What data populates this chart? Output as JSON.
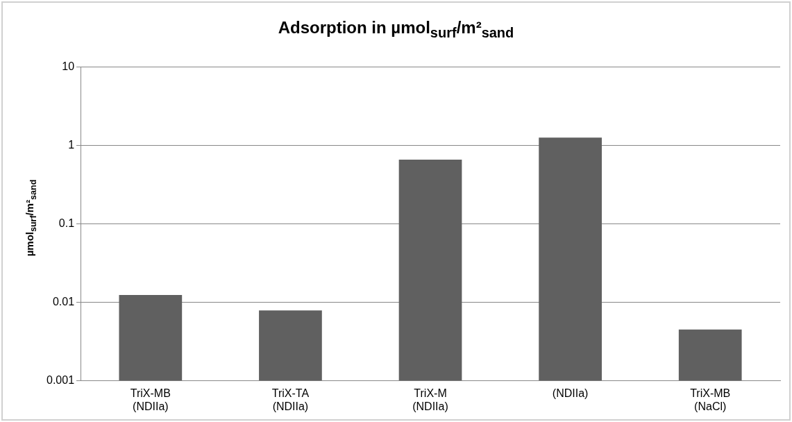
{
  "chart_data": {
    "type": "bar",
    "title": "Adsorption in µmol$_{surf}$/m²$_{sand}$",
    "ylabel": "µmol$_{surf}$/m²$_{sand}$",
    "categories": [
      "TriX-MB\n(NDIIa)",
      "TriX-TA\n(NDIIa)",
      "TriX-M\n(NDIIa)",
      "(NDIIa)",
      "TriX-MB\n(NaCl)"
    ],
    "values": [
      0.0124,
      0.0079,
      0.66,
      1.26,
      0.0045
    ],
    "color": "#606060",
    "log": "y",
    "ylim": [
      0.001,
      10
    ],
    "yticks": [
      0.001,
      0.01,
      0.1,
      1,
      10
    ],
    "grid": "y",
    "legend": false
  }
}
